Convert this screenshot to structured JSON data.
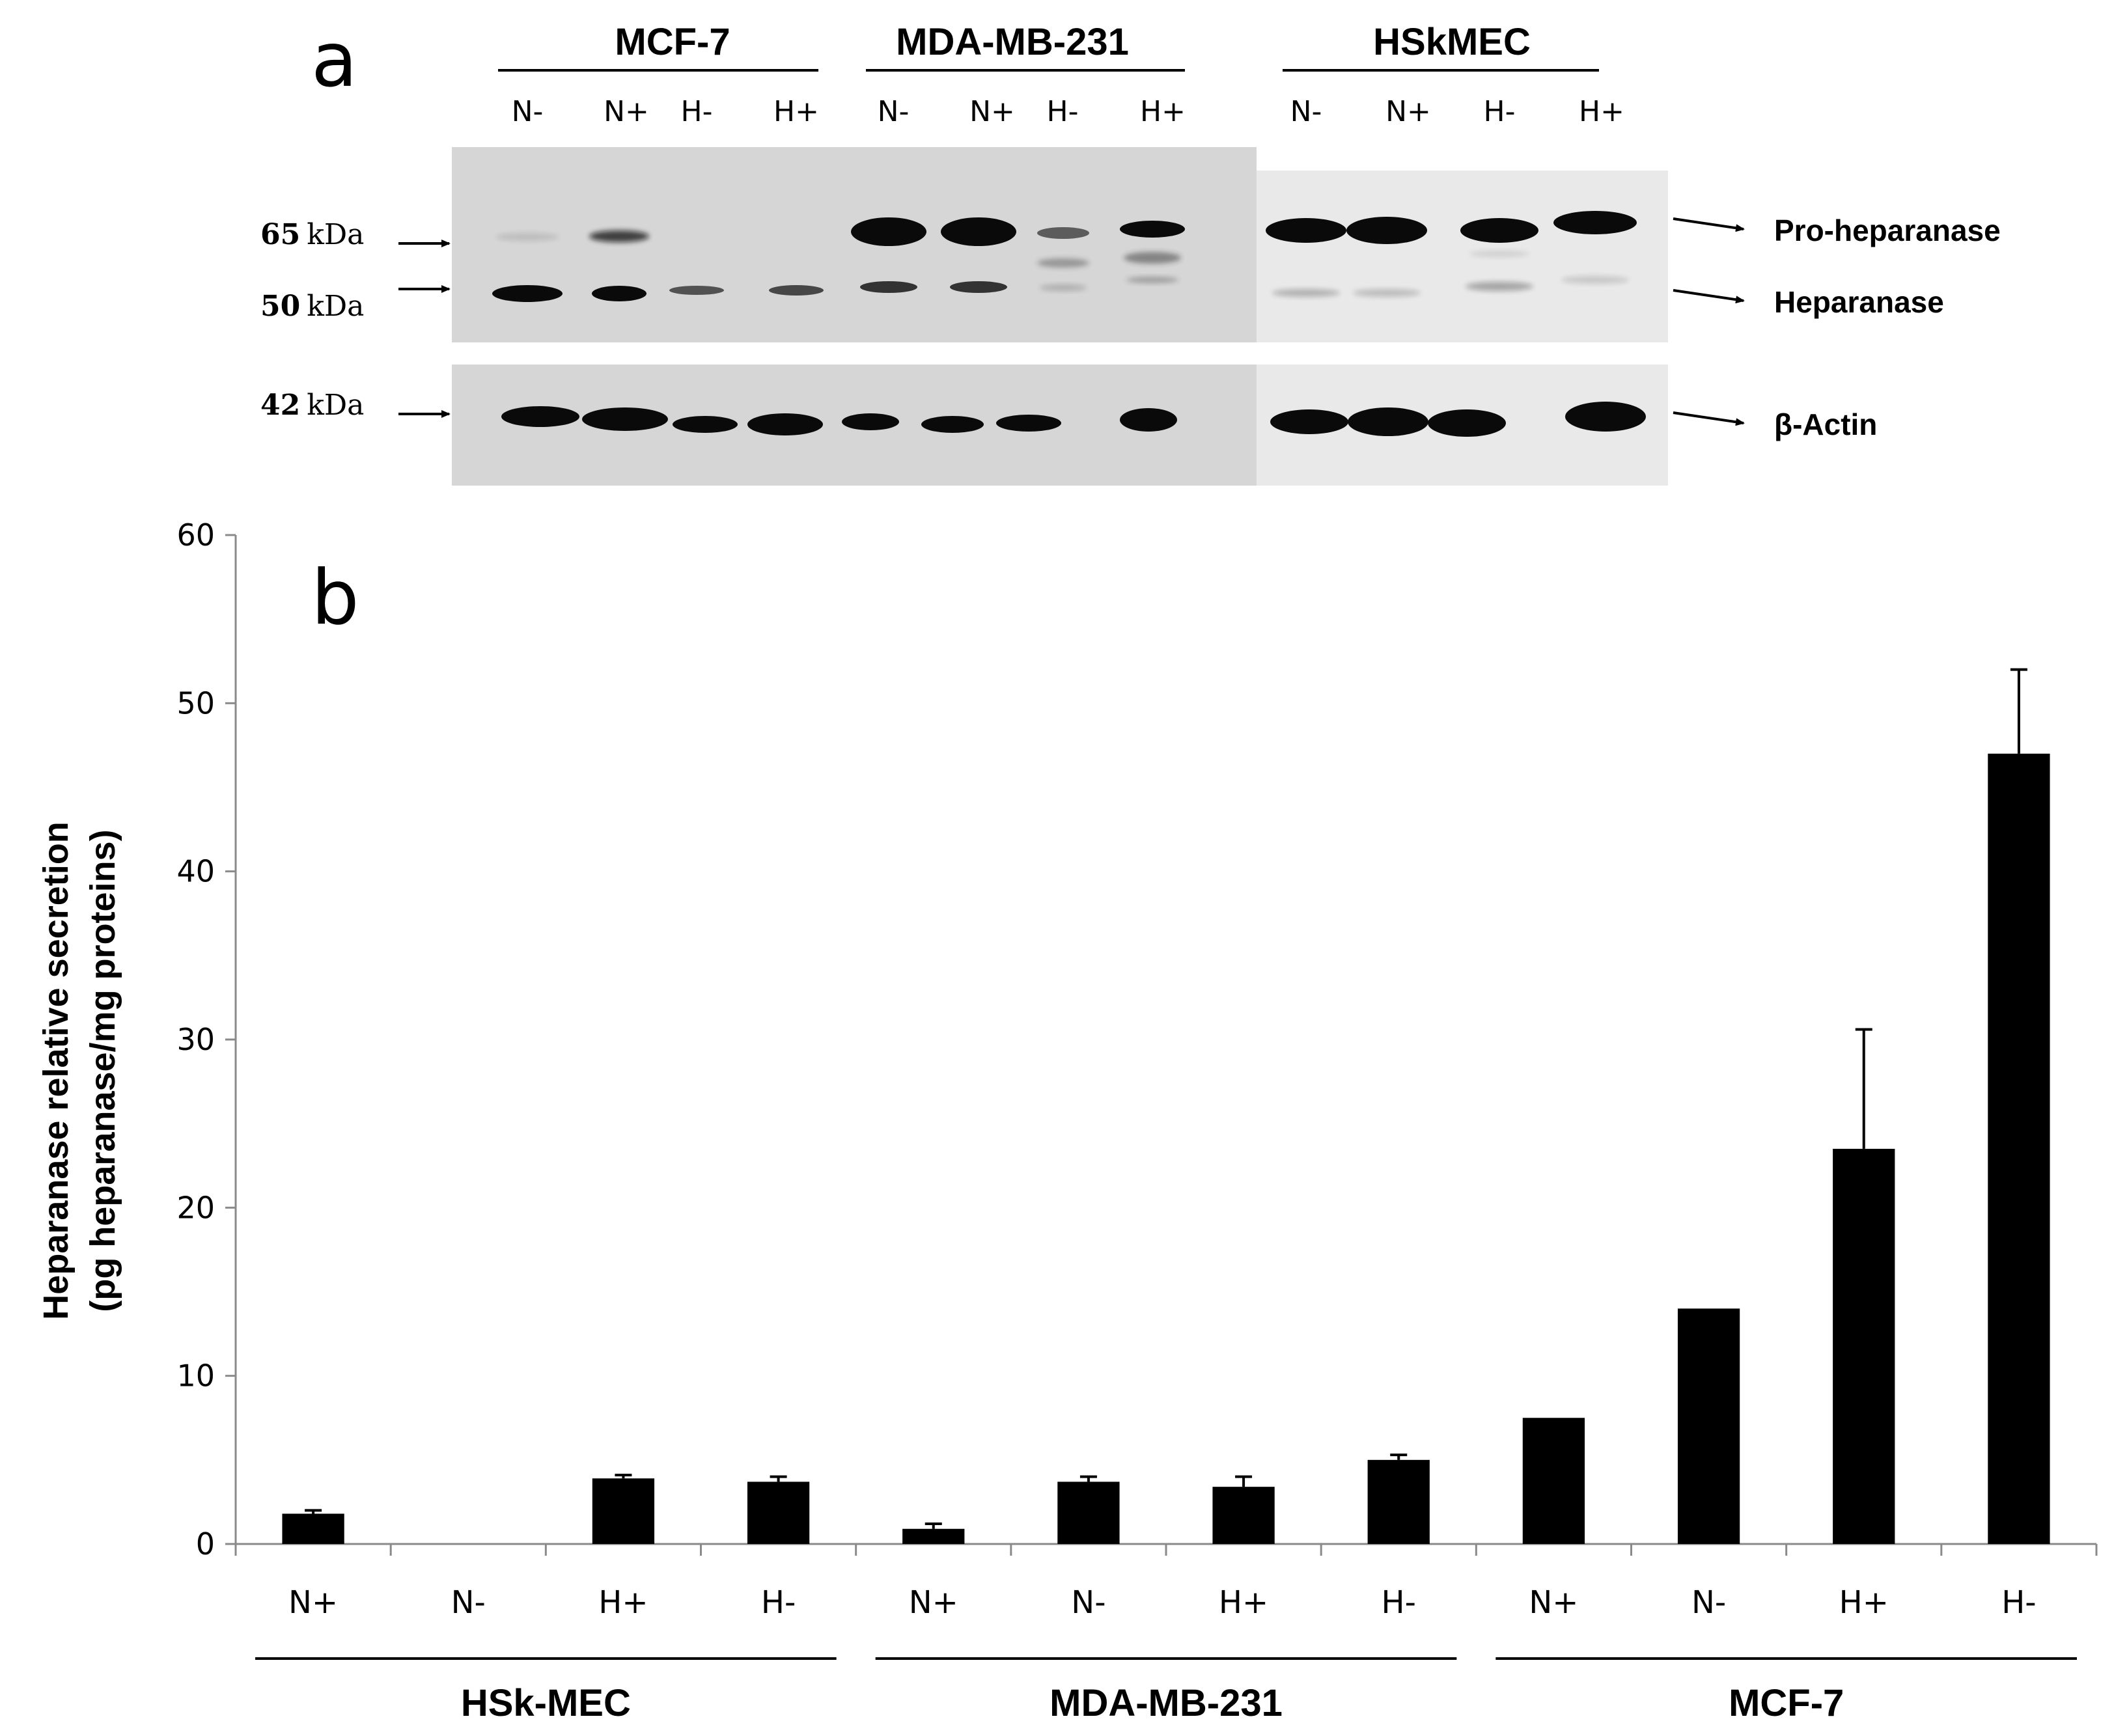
{
  "panel_a": {
    "letter": "a",
    "groups": [
      {
        "name": "MCF-7",
        "lanes": [
          "N-",
          "N+",
          "H-",
          "H+"
        ]
      },
      {
        "name": "MDA-MB-231",
        "lanes": [
          "N-",
          "N+",
          "H-",
          "H+"
        ]
      },
      {
        "name": "HSkMEC",
        "lanes": [
          "N-",
          "N+",
          "H-",
          "H+"
        ]
      }
    ],
    "markers": [
      {
        "num": "65",
        "unit": "kDa"
      },
      {
        "num": "50",
        "unit": "kDa"
      },
      {
        "num": "42",
        "unit": "kDa"
      }
    ],
    "band_labels": [
      "Pro-heparanase",
      "Heparanase",
      "β-Actin"
    ],
    "colors": {
      "blot_bg": "#d9d9d9",
      "blot_bg_right": "#e8e8e8",
      "band": "#0a0a0a"
    }
  },
  "chart_data": {
    "type": "bar",
    "panel_letter": "b",
    "title": "",
    "categories": [
      "N+",
      "N-",
      "H+",
      "H-",
      "N+",
      "N-",
      "H+",
      "H-",
      "N+",
      "N-",
      "H+",
      "H-"
    ],
    "groups": [
      {
        "name": "HSk-MEC",
        "start": 0,
        "end": 3
      },
      {
        "name": "MDA-MB-231",
        "start": 4,
        "end": 7
      },
      {
        "name": "MCF-7",
        "start": 8,
        "end": 11
      }
    ],
    "values": [
      1.8,
      0,
      3.9,
      3.7,
      0.9,
      3.7,
      3.4,
      5.0,
      7.5,
      14.0,
      23.5,
      47.0
    ],
    "errors": [
      0.2,
      0,
      0.2,
      0.3,
      0.3,
      0.3,
      0.6,
      0.3,
      0,
      0,
      7.1,
      5.0
    ],
    "ylabel_line1": "Heparanase relative secretion",
    "ylabel_line2": "(pg heparanase/mg proteins)",
    "xlabel": "",
    "ylim": [
      0,
      60
    ],
    "yticks": [
      0,
      10,
      20,
      30,
      40,
      50,
      60
    ],
    "grid": false,
    "bar_color": "#000000"
  }
}
